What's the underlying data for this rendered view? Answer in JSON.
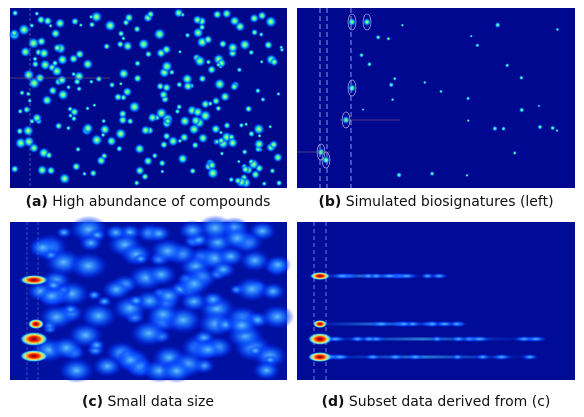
{
  "panels": [
    {
      "label": "(a)",
      "caption": "High abundance of compounds"
    },
    {
      "label": "(b)",
      "caption": "Simulated biosignatures (left)"
    },
    {
      "label": "(c)",
      "caption": "Small data size"
    },
    {
      "label": "(d)",
      "caption": "Subset data derived from (c)"
    }
  ]
}
